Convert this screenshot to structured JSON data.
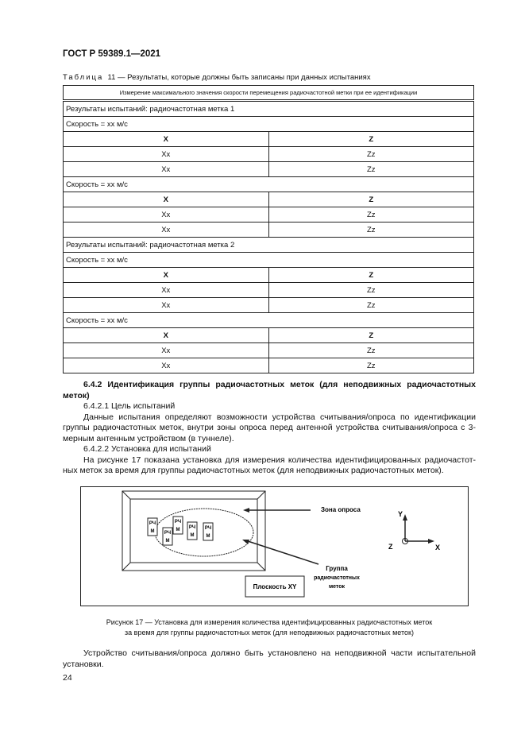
{
  "header": "ГОСТ Р 59389.1—2021",
  "table_caption": {
    "prefix": "Таблица",
    "text": "11 — Результаты, которые должны быть записаны при данных испытаниях"
  },
  "table": {
    "title": "Измерение максимального значения скорости перемещения радиочастотной метки при ее идентификации",
    "rows": [
      {
        "type": "full",
        "text": "Результаты испытаний: радиочастотная метка 1"
      },
      {
        "type": "full",
        "text": "Скорость = хх м/с"
      },
      {
        "type": "head",
        "cells": [
          "X",
          "Z"
        ]
      },
      {
        "type": "data",
        "cells": [
          "Xx",
          "Zz"
        ]
      },
      {
        "type": "data",
        "cells": [
          "Xx",
          "Zz"
        ]
      },
      {
        "type": "full",
        "text": "Скорость = хх м/с"
      },
      {
        "type": "head",
        "cells": [
          "X",
          "Z"
        ]
      },
      {
        "type": "data",
        "cells": [
          "Xx",
          "Zz"
        ]
      },
      {
        "type": "data",
        "cells": [
          "Xx",
          "Zz"
        ]
      },
      {
        "type": "full",
        "text": "Результаты испытаний: радиочастотная метка 2"
      },
      {
        "type": "full",
        "text": "Скорость = хх м/с"
      },
      {
        "type": "head",
        "cells": [
          "X",
          "Z"
        ]
      },
      {
        "type": "data",
        "cells": [
          "Xx",
          "Zz"
        ]
      },
      {
        "type": "data",
        "cells": [
          "Xx",
          "Zz"
        ]
      },
      {
        "type": "full",
        "text": "Скорость = хх м/с"
      },
      {
        "type": "head",
        "cells": [
          "X",
          "Z"
        ]
      },
      {
        "type": "data",
        "cells": [
          "Xx",
          "Zz"
        ]
      },
      {
        "type": "data",
        "cells": [
          "Xx",
          "Zz"
        ]
      }
    ]
  },
  "body": {
    "section_heading": "6.4.2 Идентификация группы радиочастотных меток (для неподвижных радиочастотных меток)",
    "sub1": "6.4.2.1 Цель испытаний",
    "para1": "Данные испытания определяют возможности устройства считывания/опроса по идентификации группы радиочастотных меток, внутри зоны опроса перед антенной устройства считывания/опроса с 3-мерным антенным устройством (в туннеле).",
    "sub2": "6.4.2.2 Установка для испытаний",
    "para2": "На рисунке 17 показана установка для измерения количества идентифицированных радиочастот-ных меток за время для группы радиочастотных меток (для неподвижных радиочастотных меток)."
  },
  "figure": {
    "zone_label": "Зона опроса",
    "group_label": [
      "Группа",
      "радиочастотных",
      "меток"
    ],
    "plane_label": "Плоскость XY",
    "tag_label": [
      "РЧ",
      "М"
    ],
    "axes": {
      "y": "Y",
      "z": "Z",
      "x": "X"
    },
    "caption_line1": "Рисунок 17 — Установка для измерения количества идентифицированных радиочастотных меток",
    "caption_line2": "за время для группы радиочастотных меток (для неподвижных радиочастотных меток)"
  },
  "closing": "Устройство считывания/опроса должно быть установлено на неподвижной части испытательной установки.",
  "page_number": "24"
}
